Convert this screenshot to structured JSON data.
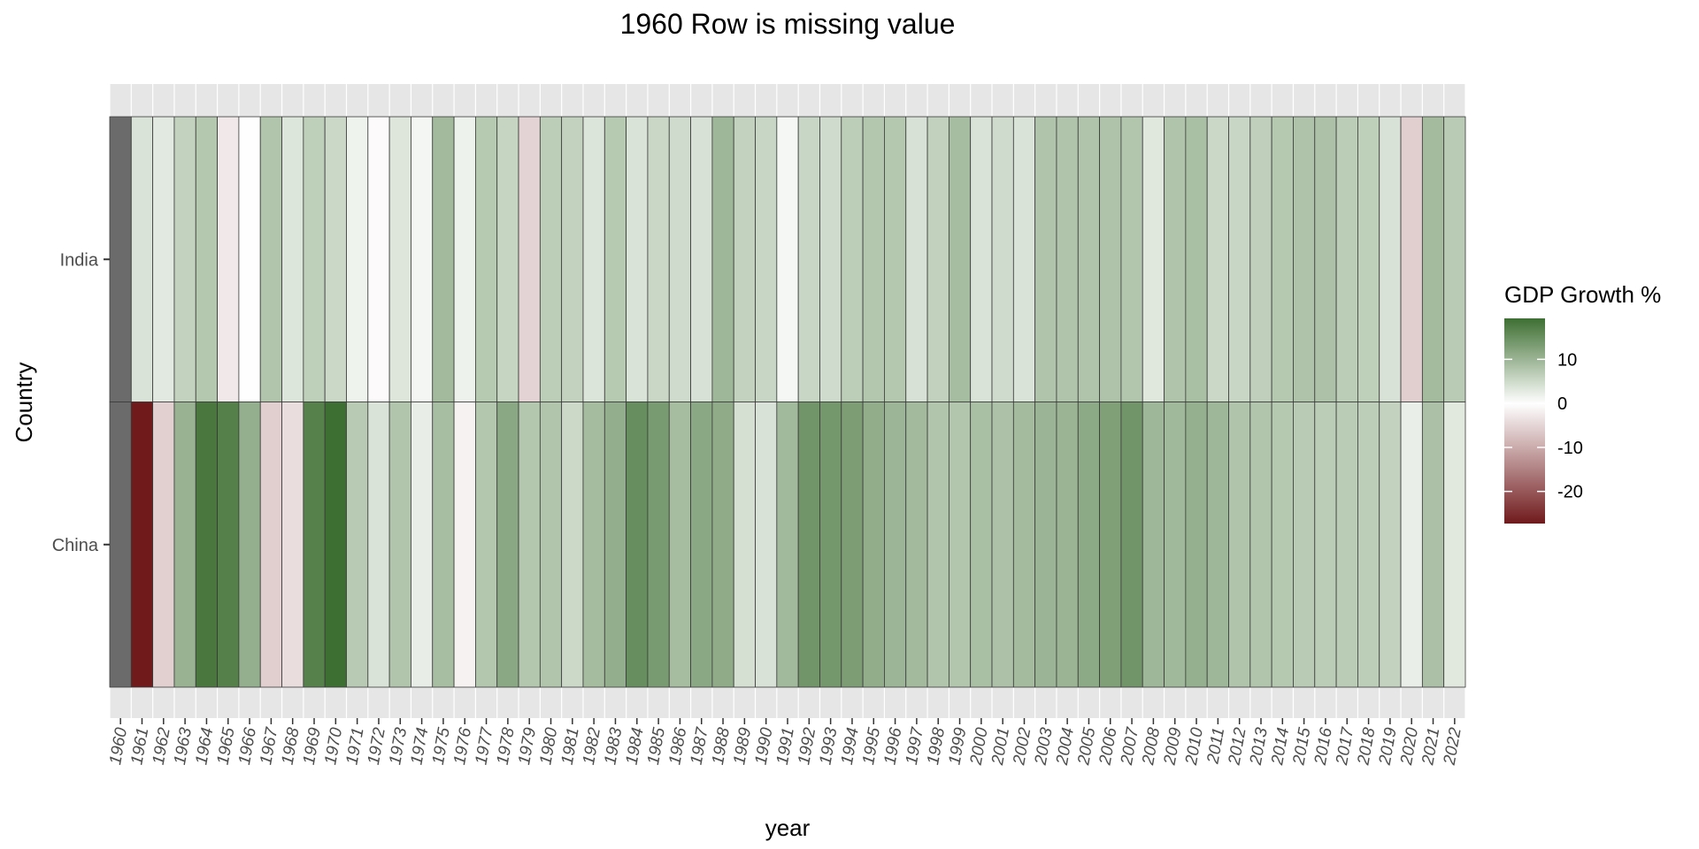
{
  "chart_data": {
    "type": "heatmap",
    "title": "1960 Row is missing value",
    "xlabel": "year",
    "ylabel": "Country",
    "x": [
      "1960",
      "1961",
      "1962",
      "1963",
      "1964",
      "1965",
      "1966",
      "1967",
      "1968",
      "1969",
      "1970",
      "1971",
      "1972",
      "1973",
      "1974",
      "1975",
      "1976",
      "1977",
      "1978",
      "1979",
      "1980",
      "1981",
      "1982",
      "1983",
      "1984",
      "1985",
      "1986",
      "1987",
      "1988",
      "1989",
      "1990",
      "1991",
      "1992",
      "1993",
      "1994",
      "1995",
      "1996",
      "1997",
      "1998",
      "1999",
      "2000",
      "2001",
      "2002",
      "2003",
      "2004",
      "2005",
      "2006",
      "2007",
      "2008",
      "2009",
      "2010",
      "2011",
      "2012",
      "2013",
      "2014",
      "2015",
      "2016",
      "2017",
      "2018",
      "2019",
      "2020",
      "2021",
      "2022"
    ],
    "y": [
      "India",
      "China"
    ],
    "series": [
      {
        "name": "India",
        "values": [
          null,
          3.7,
          2.9,
          6.0,
          7.5,
          -2.6,
          -0.1,
          7.8,
          3.4,
          6.5,
          5.2,
          1.6,
          -0.6,
          3.3,
          1.2,
          9.2,
          1.7,
          7.3,
          5.7,
          -5.2,
          6.7,
          6.0,
          3.5,
          7.3,
          3.8,
          5.3,
          4.8,
          4.0,
          9.6,
          6.0,
          5.5,
          1.1,
          5.5,
          4.8,
          6.7,
          7.6,
          7.5,
          4.0,
          6.2,
          8.8,
          3.8,
          4.8,
          3.8,
          7.9,
          7.9,
          7.9,
          8.1,
          7.7,
          3.1,
          7.9,
          8.5,
          5.2,
          5.5,
          6.4,
          7.4,
          8.0,
          8.3,
          6.8,
          6.5,
          3.9,
          -5.8,
          9.1,
          7.0
        ]
      },
      {
        "name": "China",
        "values": [
          null,
          -27.3,
          -5.6,
          10.3,
          18.2,
          17.0,
          10.7,
          -5.7,
          -4.1,
          16.9,
          19.3,
          7.1,
          3.8,
          7.8,
          2.3,
          8.7,
          -1.6,
          7.6,
          11.7,
          7.6,
          7.8,
          5.1,
          9.0,
          10.8,
          15.2,
          13.4,
          8.9,
          11.7,
          11.2,
          4.2,
          3.9,
          9.3,
          14.2,
          13.9,
          13.0,
          11.0,
          9.9,
          9.2,
          7.8,
          7.7,
          8.5,
          8.3,
          9.1,
          10.0,
          10.1,
          11.4,
          12.7,
          14.2,
          9.7,
          9.4,
          10.6,
          9.6,
          7.9,
          7.8,
          7.4,
          7.0,
          6.8,
          6.9,
          6.7,
          6.0,
          2.2,
          8.4,
          3.0
        ]
      }
    ],
    "missing_color": "#6b6b6b",
    "color_scale": {
      "title": "GDP Growth %",
      "low_color": "#701a1c",
      "mid_color": "#ffffff",
      "high_color": "#3e6f32",
      "domain": [
        -27.3,
        19.3
      ],
      "breaks": [
        "10",
        "0",
        "-10",
        "-20"
      ]
    },
    "legend_position": "right",
    "grid": false
  }
}
